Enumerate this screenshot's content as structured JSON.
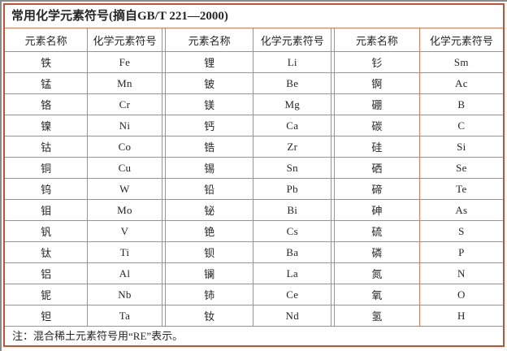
{
  "title": "常用化学元素符号(摘自GB/T 221—2000)",
  "note": "注：混合稀土元素符号用“RE”表示。",
  "colors": {
    "outer_border": "#c94f2e",
    "grid_line": "#df7b58",
    "screen_edge": "#8a8a8a",
    "text": "#262626"
  },
  "table": {
    "headers": [
      "元素名称",
      "化学元素符号",
      "元素名称",
      "化学元素符号",
      "元素名称",
      "化学元素符号"
    ],
    "rows": [
      [
        "铁",
        "Fe",
        "锂",
        "Li",
        "钐",
        "Sm"
      ],
      [
        "锰",
        "Mn",
        "铍",
        "Be",
        "锕",
        "Ac"
      ],
      [
        "铬",
        "Cr",
        "镁",
        "Mg",
        "硼",
        "B"
      ],
      [
        "镍",
        "Ni",
        "钙",
        "Ca",
        "碳",
        "C"
      ],
      [
        "钴",
        "Co",
        "锆",
        "Zr",
        "硅",
        "Si"
      ],
      [
        "铜",
        "Cu",
        "锡",
        "Sn",
        "硒",
        "Se"
      ],
      [
        "钨",
        "W",
        "铅",
        "Pb",
        "碲",
        "Te"
      ],
      [
        "钼",
        "Mo",
        "铋",
        "Bi",
        "砷",
        "As"
      ],
      [
        "钒",
        "V",
        "铯",
        "Cs",
        "硫",
        "S"
      ],
      [
        "钛",
        "Ti",
        "钡",
        "Ba",
        "磷",
        "P"
      ],
      [
        "铝",
        "Al",
        "镧",
        "La",
        "氮",
        "N"
      ],
      [
        "铌",
        "Nb",
        "铈",
        "Ce",
        "氧",
        "O"
      ],
      [
        "钽",
        "Ta",
        "钕",
        "Nd",
        "氢",
        "H"
      ]
    ]
  }
}
